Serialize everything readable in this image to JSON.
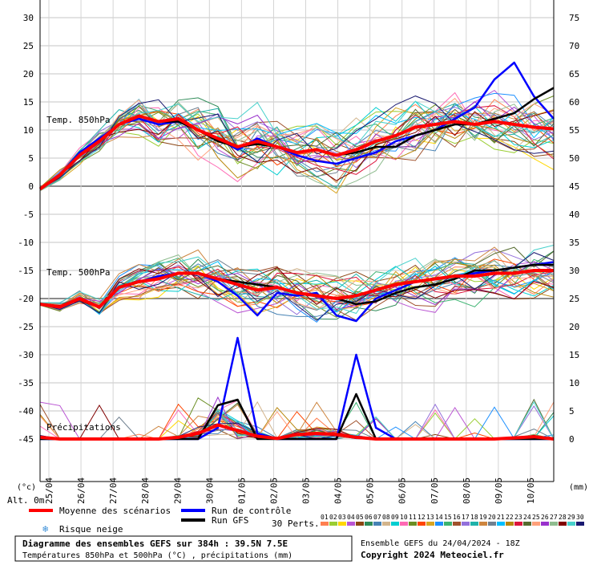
{
  "chart_data": {
    "type": "line",
    "title": "Diagramme des ensembles GEFS sur 384h : 39.5N 7.5E",
    "subtitle": "Températures 850hPa et 500hPa (°C) , précipitations (mm)",
    "run_info": "Ensemble GEFS du 24/04/2024 - 18Z",
    "copyright": "Copyright 2024 Meteociel.fr",
    "y_left": {
      "ticks": [
        "30",
        "25",
        "20",
        "15",
        "10",
        "5",
        "0",
        "-5",
        "-10",
        "-15",
        "-20",
        "-25",
        "-30",
        "-35",
        "-40",
        "-45"
      ],
      "unit": "(°c)",
      "range": [
        -45,
        30
      ]
    },
    "y_right": {
      "ticks": [
        "75",
        "70",
        "65",
        "60",
        "55",
        "50",
        "45",
        "40",
        "35",
        "30",
        "25",
        "20",
        "15",
        "10",
        "5",
        "0"
      ],
      "unit": "(mm)"
    },
    "x_categories": [
      "25/04",
      "26/04",
      "27/04",
      "28/04",
      "29/04",
      "30/04",
      "01/05",
      "02/05",
      "03/05",
      "04/05",
      "05/05",
      "06/05",
      "07/05",
      "08/05",
      "09/05",
      "10/05"
    ],
    "panel_labels": {
      "t850": "Temp. 850hPa",
      "t500": "Temp. 500hPa",
      "precip": "Précipitations"
    },
    "altitude": "Alt. 0m",
    "legend": {
      "mean": "Moyenne des scénarios",
      "control": "Run de contrôle",
      "gfs": "Run GFS",
      "snow": "Risque neige",
      "perts_label": "30 Perts.",
      "pert_ids": [
        "01",
        "02",
        "03",
        "04",
        "05",
        "06",
        "07",
        "08",
        "09",
        "10",
        "11",
        "12",
        "13",
        "14",
        "15",
        "16",
        "17",
        "18",
        "19",
        "20",
        "21",
        "22",
        "23",
        "24",
        "25",
        "26",
        "27",
        "28",
        "29",
        "30"
      ],
      "pert_colors": [
        "#ff7f50",
        "#9acd32",
        "#ffd700",
        "#ba55d3",
        "#8b4513",
        "#2e8b57",
        "#4682b4",
        "#d2b48c",
        "#00ced1",
        "#ff69b4",
        "#6b8e23",
        "#ff4500",
        "#daa520",
        "#1e90ff",
        "#3cb371",
        "#a0522d",
        "#9370db",
        "#20b2aa",
        "#cd853f",
        "#708090",
        "#00bfff",
        "#b8860b",
        "#dc143c",
        "#556b2f",
        "#ffa07a",
        "#9932cc",
        "#8fbc8f",
        "#800000",
        "#48d1cc",
        "#191970"
      ]
    },
    "series": [
      {
        "name": "Moyenne des scénarios",
        "color": "#ff0000",
        "t850": [
          -0.5,
          2,
          5.5,
          8,
          11,
          12.5,
          11.5,
          12,
          10,
          8.5,
          7,
          8,
          7,
          6,
          6.5,
          5.5,
          6.5,
          8,
          9,
          10.5,
          11,
          11.5,
          11,
          11.5,
          11,
          10.5,
          10.2
        ],
        "t500": [
          -21,
          -21.5,
          -20,
          -21.5,
          -18,
          -17,
          -16.5,
          -15.5,
          -15.5,
          -16.5,
          -17.5,
          -18.5,
          -18,
          -19,
          -19.5,
          -20,
          -19.5,
          -18.5,
          -17.5,
          -17,
          -16.5,
          -16,
          -16,
          -15.5,
          -15.5,
          -15,
          -15
        ],
        "precip_mm": [
          0.3,
          0,
          0,
          0,
          0,
          0,
          0,
          0.3,
          1,
          2.5,
          1.5,
          0.5,
          0.1,
          0.8,
          1,
          0.8,
          0.3,
          0,
          0,
          0,
          0,
          0,
          0,
          0,
          0.2,
          0.4,
          0
        ]
      },
      {
        "name": "Run de contrôle",
        "color": "#0000ff",
        "t850": [
          -0.5,
          2,
          6,
          8.5,
          11,
          12,
          11,
          11.5,
          10,
          8.5,
          6.5,
          8.5,
          7,
          5.5,
          4.5,
          4,
          5,
          6,
          8,
          9,
          10,
          12,
          14,
          19,
          22,
          16,
          12
        ],
        "t500": [
          -21,
          -21.5,
          -20,
          -21.5,
          -18,
          -17,
          -16,
          -15.5,
          -15.5,
          -17,
          -19.5,
          -23,
          -19,
          -19.5,
          -19,
          -23,
          -24,
          -20,
          -18.5,
          -17,
          -16.5,
          -16,
          -15.5,
          -15,
          -14.5,
          -14,
          -13.5
        ],
        "precip_mm": [
          0,
          0,
          0,
          0,
          0,
          0,
          0,
          0,
          0,
          2,
          18,
          1,
          0,
          0,
          0,
          0,
          15,
          2,
          0,
          0,
          0,
          0,
          0,
          0,
          0,
          0,
          0
        ]
      },
      {
        "name": "Run GFS",
        "color": "#000000",
        "t850": [
          -0.5,
          2,
          5.5,
          8,
          11,
          12.5,
          11.5,
          11.5,
          10,
          8,
          7,
          7.5,
          7,
          6,
          6.5,
          5.5,
          6,
          7,
          7,
          9,
          10,
          11,
          11,
          12,
          13,
          15.5,
          17.5
        ],
        "t500": [
          -21,
          -21.5,
          -20,
          -21.5,
          -18,
          -17,
          -16.5,
          -15.5,
          -15.5,
          -16.5,
          -17,
          -17.5,
          -18,
          -19,
          -19.5,
          -20,
          -21,
          -20.5,
          -19,
          -18,
          -17.5,
          -16.5,
          -15,
          -15,
          -14.5,
          -14,
          -14
        ],
        "precip_mm": [
          0,
          0,
          0,
          0,
          0,
          0,
          0,
          0,
          0,
          6,
          7,
          0,
          0,
          0,
          0,
          0,
          8,
          0,
          0,
          0,
          0,
          0,
          0,
          0,
          0,
          0,
          0
        ]
      }
    ]
  }
}
